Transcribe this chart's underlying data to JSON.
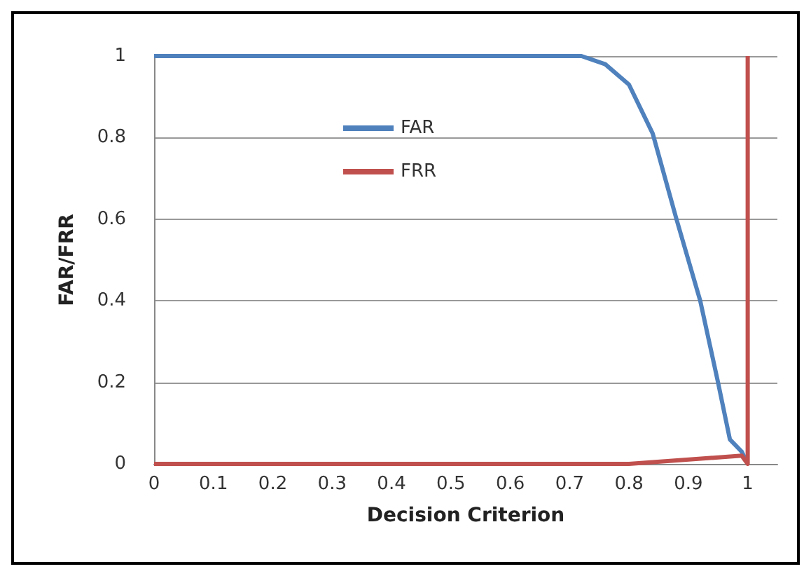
{
  "chart_data": {
    "type": "line",
    "xlabel": "Decision Criterion",
    "ylabel": "FAR/FRR",
    "xlim": [
      0,
      1.05
    ],
    "xticks": [
      0,
      0.1,
      0.2,
      0.3,
      0.4,
      0.5,
      0.6,
      0.7,
      0.8,
      0.9,
      1
    ],
    "ylim": [
      0,
      1
    ],
    "yticks": [
      0,
      0.2,
      0.4,
      0.6,
      0.8,
      1
    ],
    "series": [
      {
        "name": "FAR",
        "color": "#4f81bd",
        "x": [
          0,
          0.72,
          0.76,
          0.8,
          0.84,
          0.88,
          0.92,
          0.95,
          0.97,
          0.99,
          1
        ],
        "values": [
          1,
          1,
          0.98,
          0.93,
          0.81,
          0.6,
          0.4,
          0.2,
          0.06,
          0.03,
          0
        ]
      },
      {
        "name": "FRR",
        "color": "#c0504d",
        "x": [
          0,
          0.3,
          0.37,
          0.8,
          0.99,
          1,
          1
        ],
        "values": [
          0,
          0,
          0,
          0,
          0.02,
          0,
          1
        ]
      }
    ],
    "grid": "y",
    "legend": "top",
    "marker": "none",
    "line_style": "solid"
  }
}
